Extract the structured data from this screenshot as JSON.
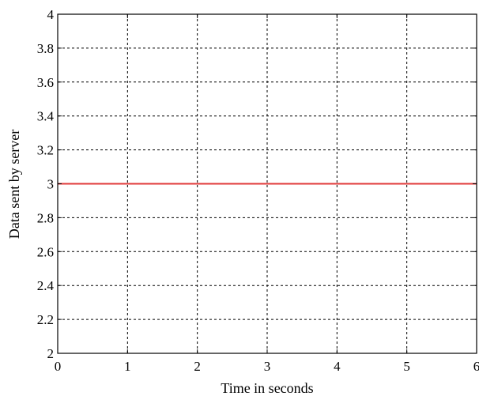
{
  "chart_data": {
    "type": "line",
    "title": "",
    "xlabel": "Time in seconds",
    "ylabel": "Data sent by server",
    "xlim": [
      0,
      6
    ],
    "ylim": [
      2,
      4
    ],
    "x_ticks": [
      0,
      1,
      2,
      3,
      4,
      5,
      6
    ],
    "y_ticks": [
      2,
      2.2,
      2.4,
      2.6,
      2.8,
      3,
      3.2,
      3.4,
      3.6,
      3.8,
      4
    ],
    "x_tick_labels": [
      "0",
      "1",
      "2",
      "3",
      "4",
      "5",
      "6"
    ],
    "y_tick_labels": [
      "2",
      "2.2",
      "2.4",
      "2.6",
      "2.8",
      "3",
      "3.2",
      "3.4",
      "3.6",
      "3.8",
      "4"
    ],
    "grid": true,
    "grid_style": "dashed",
    "series": [
      {
        "color": "#e03a3a",
        "x": [
          0,
          6
        ],
        "y": [
          3,
          3
        ]
      }
    ]
  }
}
